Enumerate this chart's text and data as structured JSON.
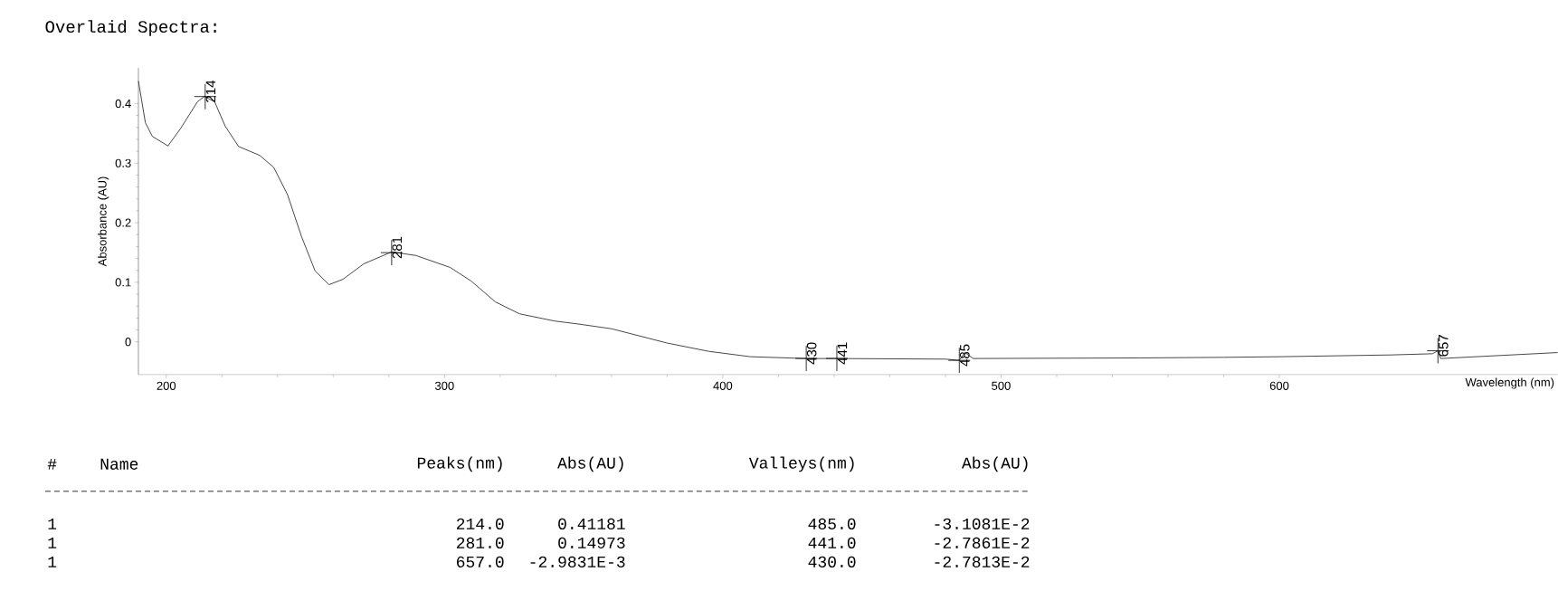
{
  "chart_data": {
    "type": "line",
    "title": "Overlaid Spectra:",
    "xlabel": "Wavelength (nm)",
    "ylabel": "Absorbance (AU)",
    "xlim": [
      190,
      700
    ],
    "ylim": [
      -0.055,
      0.46
    ],
    "xticks": [
      200,
      300,
      400,
      500,
      600
    ],
    "yticks": [
      0,
      0.1,
      0.2,
      0.3,
      0.4
    ],
    "grid": false,
    "marker": "none",
    "line_style": "solid",
    "series": [
      {
        "color": "#333333",
        "x": [
          190,
          192.5,
          195,
          200.6,
          205,
          211.2,
          213.7,
          217.4,
          221.2,
          226,
          233.6,
          238.6,
          243.6,
          248.6,
          253.5,
          258.5,
          263.5,
          271,
          281,
          289.7,
          302,
          309.6,
          318.3,
          327,
          339.5,
          348,
          360,
          380,
          395,
          410,
          430,
          441,
          480,
          485,
          487,
          490,
          550,
          580,
          600,
          640,
          655,
          657,
          658,
          700
        ],
        "values": [
          0.438,
          0.368,
          0.345,
          0.329,
          0.357,
          0.403,
          0.412,
          0.403,
          0.362,
          0.328,
          0.313,
          0.293,
          0.247,
          0.177,
          0.119,
          0.096,
          0.105,
          0.131,
          0.151,
          0.145,
          0.125,
          0.102,
          0.067,
          0.047,
          0.035,
          0.03,
          0.022,
          -0.002,
          -0.016,
          -0.025,
          -0.028,
          -0.028,
          -0.029,
          -0.031,
          -0.018,
          -0.028,
          -0.027,
          -0.026,
          -0.025,
          -0.022,
          -0.02,
          -0.015,
          -0.028,
          -0.018
        ]
      }
    ],
    "annotations": [
      {
        "text": "214",
        "x": 214,
        "y": 0.41181
      },
      {
        "text": "281",
        "x": 281,
        "y": 0.14973
      },
      {
        "text": "430",
        "x": 430,
        "y": -0.027813
      },
      {
        "text": "441",
        "x": 441,
        "y": -0.027861
      },
      {
        "text": "485",
        "x": 485,
        "y": -0.031081
      },
      {
        "text": "657",
        "x": 657,
        "y": -0.015
      },
      "#",
      "Name",
      "Peaks(nm)",
      "Abs(AU)",
      "Valleys(nm)",
      "Abs(AU)",
      "1",
      "214.0",
      "0.41181",
      "485.0",
      "-3.1081E-2",
      "1",
      "281.0",
      "0.14973",
      "441.0",
      "-2.7861E-2",
      "1",
      "657.0",
      "-2.9831E-3",
      "430.0",
      "-2.7813E-2"
    ]
  }
}
